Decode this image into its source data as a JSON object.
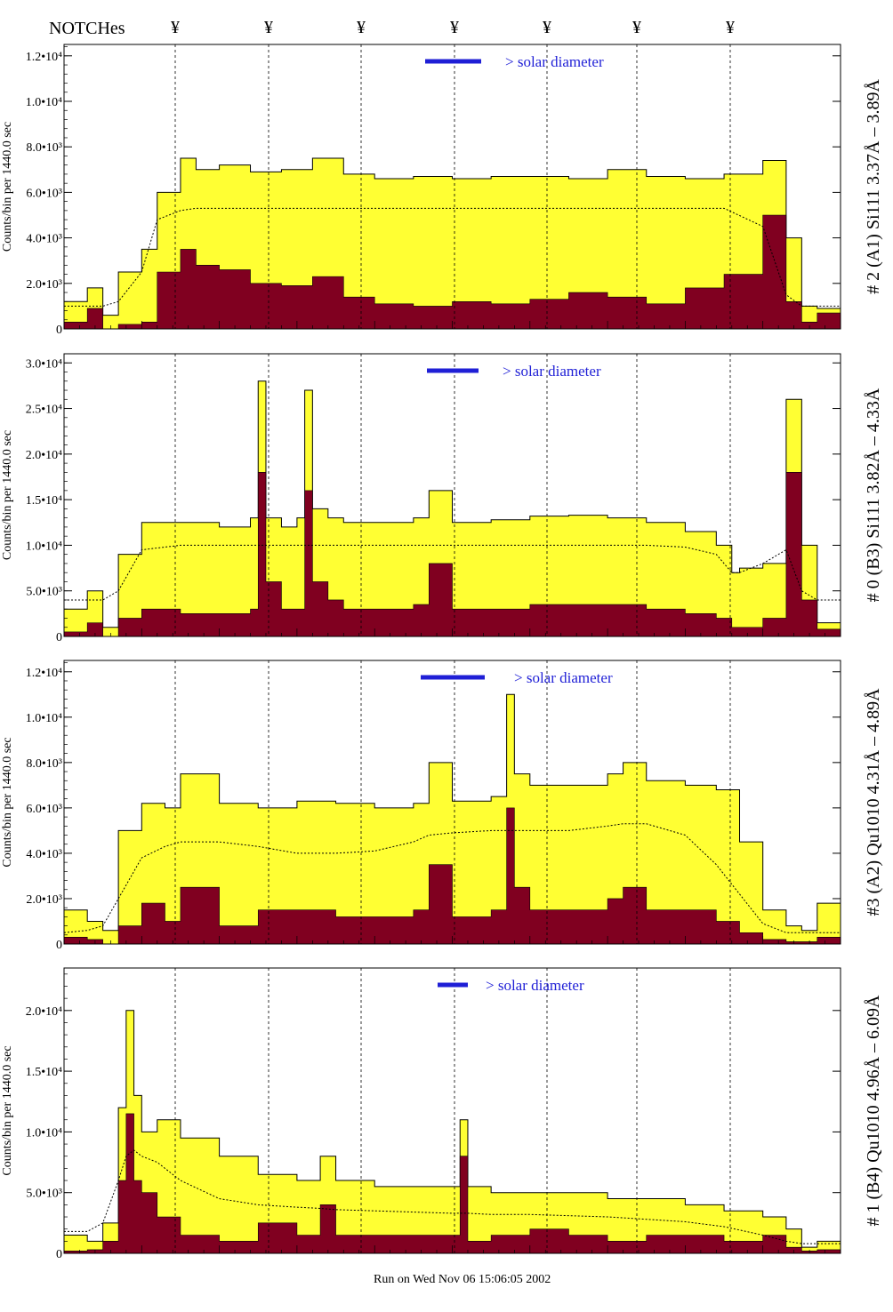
{
  "header": {
    "notches_label": "NOTCHes",
    "notch_symbol": "¥",
    "notch_count": 7
  },
  "footer_text": "Run on Wed Nov 06 15:06:05 2002",
  "colors": {
    "total_fill": "#ffff33",
    "component_fill": "#800020",
    "legend": "#1f1fd6",
    "outline": "#000000"
  },
  "chart_data": [
    {
      "type": "area",
      "ylabel": "Counts/bin per  1440.0 sec",
      "right_label": "# 2 (A1) Si111  3.37Å – 3.89Å",
      "legend_text": "> solar diameter",
      "yticks": [
        "0",
        "2.0•10³",
        "4.0•10³",
        "6.0•10³",
        "8.0•10³",
        "1.0•10⁴",
        "1.2•10⁴"
      ],
      "ytick_values": [
        0,
        2000,
        4000,
        6000,
        8000,
        10000,
        12000
      ],
      "ylim": [
        0,
        12500
      ],
      "x": [
        0,
        3,
        5,
        7,
        10,
        12,
        15,
        17,
        20,
        24,
        28,
        32,
        36,
        40,
        45,
        50,
        55,
        60,
        65,
        70,
        75,
        80,
        85,
        90,
        93,
        95,
        97,
        100
      ],
      "series": [
        {
          "values": [
            1200,
            1800,
            600,
            2500,
            3500,
            6000,
            7500,
            7000,
            7200,
            6900,
            7000,
            7500,
            6800,
            6600,
            6700,
            6600,
            6700,
            6700,
            6600,
            7000,
            6700,
            6600,
            6800,
            7400,
            4000,
            1000,
            900,
            0
          ]
        },
        {
          "values": [
            300,
            900,
            0,
            200,
            300,
            2500,
            3500,
            2800,
            2600,
            2000,
            1900,
            2300,
            1400,
            1100,
            1000,
            1200,
            1100,
            1300,
            1600,
            1400,
            1100,
            1800,
            2400,
            5000,
            1200,
            300,
            700,
            0
          ]
        },
        {
          "values": [
            1000,
            1000,
            1000,
            1200,
            2500,
            4800,
            5200,
            5300,
            5300,
            5300,
            5300,
            5300,
            5300,
            5300,
            5300,
            5300,
            5300,
            5300,
            5300,
            5300,
            5300,
            5300,
            5300,
            4500,
            1500,
            1000,
            1000,
            1000
          ]
        }
      ]
    },
    {
      "type": "area",
      "ylabel": "Counts/bin per  1440.0 sec",
      "right_label": "# 0 (B3) Si111  3.82Å – 4.33Å",
      "legend_text": "> solar diameter",
      "yticks": [
        "0",
        "5.0•10³",
        "1.0•10⁴",
        "1.5•10⁴",
        "2.0•10⁴",
        "2.5•10⁴",
        "3.0•10⁴"
      ],
      "ytick_values": [
        0,
        5000,
        10000,
        15000,
        20000,
        25000,
        30000
      ],
      "ylim": [
        0,
        31000
      ],
      "x": [
        0,
        3,
        5,
        7,
        10,
        15,
        20,
        24,
        25,
        26,
        28,
        30,
        31,
        32,
        34,
        36,
        40,
        45,
        47,
        50,
        55,
        60,
        65,
        70,
        75,
        80,
        84,
        86,
        87,
        90,
        93,
        95,
        97,
        100
      ],
      "series": [
        {
          "values": [
            3000,
            5000,
            1000,
            9000,
            12500,
            12500,
            12000,
            13000,
            28000,
            13000,
            12000,
            13000,
            27000,
            14000,
            13000,
            12500,
            12500,
            13000,
            16000,
            12500,
            12800,
            13200,
            13300,
            13000,
            12500,
            11500,
            10000,
            7000,
            7500,
            8000,
            26000,
            10000,
            1500,
            0
          ]
        },
        {
          "values": [
            500,
            1500,
            0,
            2000,
            3000,
            2500,
            2500,
            3000,
            18000,
            6000,
            3000,
            3000,
            16000,
            6000,
            4000,
            3000,
            3000,
            3500,
            8000,
            3000,
            3000,
            3500,
            3500,
            3500,
            3000,
            2500,
            2000,
            1000,
            1000,
            2000,
            18000,
            4000,
            800,
            0
          ]
        },
        {
          "values": [
            4000,
            4000,
            4000,
            5000,
            9500,
            10000,
            10000,
            10000,
            10000,
            10000,
            10000,
            10000,
            10000,
            10000,
            10000,
            10000,
            10000,
            10000,
            10000,
            10000,
            10000,
            10000,
            10000,
            10000,
            10000,
            9800,
            9000,
            7000,
            7000,
            8000,
            9500,
            5000,
            4000,
            4000
          ]
        }
      ]
    },
    {
      "type": "area",
      "ylabel": "Counts/bin per  1440.0 sec",
      "right_label": "#3 (A2) Qu1010  4.31Å – 4.89Å",
      "legend_text": "> solar diameter",
      "yticks": [
        "0",
        "2.0•10³",
        "4.0•10³",
        "6.0•10³",
        "8.0•10³",
        "1.0•10⁴",
        "1.2•10⁴"
      ],
      "ytick_values": [
        0,
        2000,
        4000,
        6000,
        8000,
        10000,
        12000
      ],
      "ylim": [
        0,
        12500
      ],
      "x": [
        0,
        3,
        5,
        7,
        10,
        13,
        15,
        20,
        25,
        30,
        35,
        40,
        45,
        47,
        50,
        55,
        57,
        58,
        60,
        65,
        70,
        72,
        75,
        80,
        84,
        87,
        90,
        93,
        95,
        97,
        100
      ],
      "series": [
        {
          "values": [
            1500,
            1000,
            600,
            5000,
            6200,
            6000,
            7500,
            6200,
            6000,
            6300,
            6200,
            6000,
            6200,
            8000,
            6300,
            6500,
            11000,
            7500,
            7000,
            7000,
            7500,
            8000,
            7200,
            7000,
            6800,
            4500,
            1500,
            800,
            600,
            1800,
            0
          ]
        },
        {
          "values": [
            300,
            200,
            0,
            800,
            1800,
            1000,
            2500,
            800,
            1500,
            1500,
            1200,
            1200,
            1500,
            3500,
            1200,
            1500,
            6000,
            2500,
            1500,
            1500,
            2000,
            2500,
            1500,
            1500,
            1000,
            500,
            200,
            100,
            100,
            300,
            0
          ]
        },
        {
          "values": [
            500,
            600,
            800,
            2000,
            3800,
            4300,
            4500,
            4500,
            4300,
            4000,
            4000,
            4100,
            4500,
            4800,
            4900,
            5000,
            5000,
            5000,
            5000,
            5000,
            5200,
            5300,
            5300,
            4800,
            3500,
            2200,
            900,
            500,
            500,
            500,
            500
          ]
        }
      ]
    },
    {
      "type": "area",
      "ylabel": "Counts/bin per  1440.0 sec",
      "right_label": "# 1 (B4) Qu1010 4.96Å – 6.09Å",
      "legend_text": "> solar diameter",
      "yticks": [
        "0",
        "5.0•10³",
        "1.0•10⁴",
        "1.5•10⁴",
        "2.0•10⁴"
      ],
      "ytick_values": [
        0,
        5000,
        10000,
        15000,
        20000
      ],
      "ylim": [
        0,
        23500
      ],
      "x": [
        0,
        3,
        5,
        7,
        8,
        9,
        10,
        12,
        15,
        20,
        25,
        30,
        33,
        35,
        40,
        45,
        50,
        51,
        52,
        55,
        60,
        65,
        70,
        75,
        80,
        85,
        90,
        93,
        95,
        97,
        100
      ],
      "series": [
        {
          "values": [
            1500,
            1000,
            2500,
            12000,
            20000,
            13000,
            10000,
            11000,
            9500,
            8000,
            6500,
            6000,
            8000,
            6000,
            5500,
            5500,
            5500,
            11000,
            5500,
            5000,
            5000,
            5000,
            4500,
            4500,
            4000,
            3500,
            3000,
            2000,
            500,
            1000,
            0
          ]
        },
        {
          "values": [
            200,
            300,
            1000,
            6000,
            11500,
            6000,
            5000,
            3000,
            1500,
            1000,
            2500,
            1500,
            4000,
            1500,
            1500,
            1500,
            1500,
            8000,
            1000,
            1500,
            2000,
            1500,
            1000,
            1500,
            1500,
            1000,
            1500,
            500,
            200,
            300,
            0
          ]
        },
        {
          "values": [
            1800,
            1800,
            2500,
            6000,
            8000,
            8500,
            8000,
            7500,
            6000,
            4500,
            4000,
            3800,
            3700,
            3600,
            3500,
            3400,
            3300,
            3300,
            3300,
            3200,
            3200,
            3100,
            3000,
            2800,
            2600,
            2200,
            1500,
            1000,
            800,
            800,
            800
          ]
        }
      ]
    }
  ]
}
